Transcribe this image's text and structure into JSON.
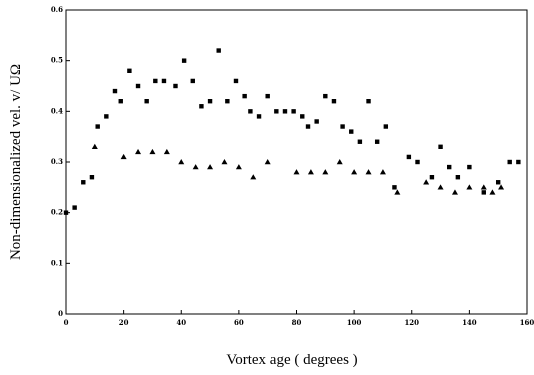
{
  "chart_data": {
    "type": "scatter",
    "title": "",
    "xlabel": "Vortex age ( degrees )",
    "ylabel": "Non-dimensionalized vel. v/ UΩ",
    "xlim": [
      0,
      160
    ],
    "ylim": [
      0,
      0.6
    ],
    "xticks": [
      "0",
      "20",
      "40",
      "60",
      "80",
      "100",
      "120",
      "140",
      "160"
    ],
    "yticks": [
      "0",
      "0.1",
      "0.2",
      "0.3",
      "0.4",
      "0.5",
      "0.6"
    ],
    "grid": false,
    "legend": "none",
    "series": [
      {
        "marker": "square",
        "color": "#000000",
        "points": [
          [
            0,
            0.2
          ],
          [
            3,
            0.21
          ],
          [
            6,
            0.26
          ],
          [
            9,
            0.27
          ],
          [
            11,
            0.37
          ],
          [
            14,
            0.39
          ],
          [
            17,
            0.44
          ],
          [
            19,
            0.42
          ],
          [
            22,
            0.48
          ],
          [
            25,
            0.45
          ],
          [
            28,
            0.42
          ],
          [
            31,
            0.46
          ],
          [
            34,
            0.46
          ],
          [
            38,
            0.45
          ],
          [
            41,
            0.5
          ],
          [
            44,
            0.46
          ],
          [
            47,
            0.41
          ],
          [
            50,
            0.42
          ],
          [
            53,
            0.52
          ],
          [
            56,
            0.42
          ],
          [
            59,
            0.46
          ],
          [
            62,
            0.43
          ],
          [
            64,
            0.4
          ],
          [
            67,
            0.39
          ],
          [
            70,
            0.43
          ],
          [
            73,
            0.4
          ],
          [
            76,
            0.4
          ],
          [
            79,
            0.4
          ],
          [
            82,
            0.39
          ],
          [
            84,
            0.37
          ],
          [
            87,
            0.38
          ],
          [
            90,
            0.43
          ],
          [
            93,
            0.42
          ],
          [
            96,
            0.37
          ],
          [
            99,
            0.36
          ],
          [
            102,
            0.34
          ],
          [
            105,
            0.42
          ],
          [
            108,
            0.34
          ],
          [
            111,
            0.37
          ],
          [
            114,
            0.25
          ],
          [
            119,
            0.31
          ],
          [
            122,
            0.3
          ],
          [
            127,
            0.27
          ],
          [
            130,
            0.33
          ],
          [
            133,
            0.29
          ],
          [
            136,
            0.27
          ],
          [
            140,
            0.29
          ],
          [
            145,
            0.24
          ],
          [
            150,
            0.26
          ],
          [
            154,
            0.3
          ],
          [
            157,
            0.3
          ]
        ]
      },
      {
        "marker": "triangle",
        "color": "#000000",
        "points": [
          [
            10,
            0.33
          ],
          [
            20,
            0.31
          ],
          [
            25,
            0.32
          ],
          [
            30,
            0.32
          ],
          [
            35,
            0.32
          ],
          [
            40,
            0.3
          ],
          [
            45,
            0.29
          ],
          [
            50,
            0.29
          ],
          [
            55,
            0.3
          ],
          [
            60,
            0.29
          ],
          [
            65,
            0.27
          ],
          [
            70,
            0.3
          ],
          [
            80,
            0.28
          ],
          [
            85,
            0.28
          ],
          [
            90,
            0.28
          ],
          [
            95,
            0.3
          ],
          [
            100,
            0.28
          ],
          [
            105,
            0.28
          ],
          [
            110,
            0.28
          ],
          [
            115,
            0.24
          ],
          [
            125,
            0.26
          ],
          [
            130,
            0.25
          ],
          [
            135,
            0.24
          ],
          [
            140,
            0.25
          ],
          [
            145,
            0.25
          ],
          [
            148,
            0.24
          ],
          [
            151,
            0.25
          ]
        ]
      }
    ]
  }
}
